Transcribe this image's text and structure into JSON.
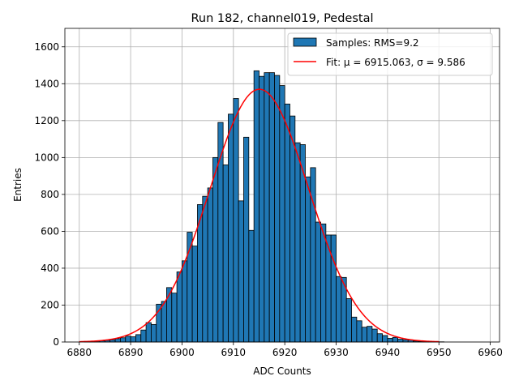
{
  "chart_data": {
    "type": "bar",
    "title": "Run 182, channel019, Pedestal",
    "xlabel": "ADC Counts",
    "ylabel": "Entries",
    "xlim": [
      6877.2,
      6961.8
    ],
    "ylim": [
      0,
      1700
    ],
    "xticks": [
      6880,
      6890,
      6900,
      6910,
      6920,
      6930,
      6940,
      6950,
      6960
    ],
    "yticks": [
      0,
      200,
      400,
      600,
      800,
      1000,
      1200,
      1400,
      1600
    ],
    "grid": true,
    "legend": {
      "location": "top-right",
      "entries": [
        {
          "label": "Samples: RMS=9.2",
          "kind": "patch",
          "color": "#1f77b4"
        },
        {
          "label": "Fit: μ = 6915.063, σ = 9.586",
          "kind": "line",
          "color": "#ff0000"
        }
      ]
    },
    "series": [
      {
        "name": "Samples: RMS=9.2",
        "type": "histogram",
        "color": "#1f77b4",
        "bin_width": 1,
        "bin_start": 6881,
        "values": [
          2,
          3,
          5,
          6,
          9,
          12,
          18,
          23,
          32,
          28,
          40,
          65,
          105,
          95,
          205,
          220,
          295,
          265,
          380,
          440,
          595,
          520,
          745,
          790,
          835,
          1000,
          1190,
          960,
          1235,
          1320,
          765,
          1110,
          605,
          1470,
          1440,
          1460,
          1460,
          1445,
          1390,
          1290,
          1225,
          1080,
          1070,
          895,
          945,
          650,
          640,
          580,
          580,
          355,
          350,
          235,
          135,
          115,
          80,
          85,
          70,
          45,
          35,
          20,
          25,
          15,
          12,
          10,
          5,
          4,
          3,
          2,
          2,
          1
        ]
      },
      {
        "name": "Fit: μ = 6915.063, σ = 9.586",
        "type": "line",
        "color": "#ff0000",
        "function": "gaussian",
        "mu": 6915.063,
        "sigma": 9.586,
        "amplitude": 1370,
        "x_range": [
          6880,
          6950
        ]
      }
    ]
  }
}
